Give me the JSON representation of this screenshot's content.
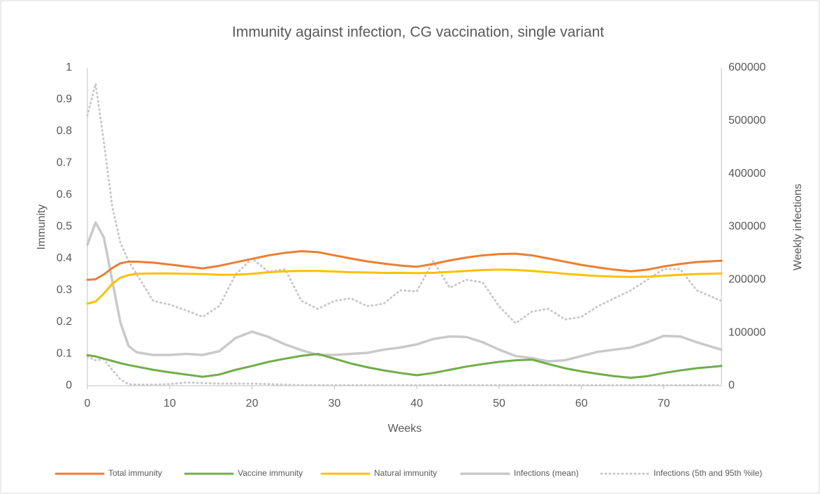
{
  "chart_data": {
    "type": "line",
    "title": "Immunity against infection, CG vaccination, single variant",
    "x_label": "Weeks",
    "y_label": "Immunity",
    "y2_label": "Weekly infections",
    "x": [
      0,
      1,
      2,
      3,
      4,
      5,
      6,
      8,
      10,
      12,
      14,
      16,
      18,
      20,
      22,
      24,
      26,
      28,
      30,
      32,
      34,
      36,
      38,
      40,
      42,
      44,
      46,
      48,
      50,
      52,
      54,
      56,
      58,
      60,
      62,
      64,
      66,
      68,
      70,
      72,
      74,
      77
    ],
    "xlim": [
      0,
      77
    ],
    "xticks": [
      0,
      10,
      20,
      30,
      40,
      50,
      60,
      70
    ],
    "ylim": [
      0,
      1
    ],
    "yticks": [
      0,
      0.1,
      0.2,
      0.3,
      0.4,
      0.5,
      0.6,
      0.7,
      0.8,
      0.9,
      1
    ],
    "y2lim": [
      0,
      600000
    ],
    "y2ticks": [
      0,
      100000,
      200000,
      300000,
      400000,
      500000,
      600000
    ],
    "series": [
      {
        "name": "Total immunity",
        "color": "#ed7d31",
        "width": 3,
        "values": [
          0.333,
          0.335,
          0.35,
          0.37,
          0.385,
          0.39,
          0.39,
          0.387,
          0.381,
          0.375,
          0.369,
          0.377,
          0.388,
          0.399,
          0.41,
          0.418,
          0.423,
          0.42,
          0.41,
          0.4,
          0.391,
          0.384,
          0.378,
          0.374,
          0.383,
          0.394,
          0.403,
          0.41,
          0.414,
          0.415,
          0.41,
          0.4,
          0.39,
          0.38,
          0.372,
          0.365,
          0.36,
          0.365,
          0.375,
          0.383,
          0.389,
          0.393
        ]
      },
      {
        "name": "Vaccine immunity",
        "color": "#70ad47",
        "width": 3,
        "values": [
          0.096,
          0.092,
          0.085,
          0.078,
          0.071,
          0.065,
          0.06,
          0.05,
          0.042,
          0.035,
          0.028,
          0.035,
          0.05,
          0.062,
          0.075,
          0.085,
          0.094,
          0.1,
          0.085,
          0.07,
          0.058,
          0.048,
          0.04,
          0.033,
          0.04,
          0.05,
          0.06,
          0.068,
          0.075,
          0.08,
          0.082,
          0.068,
          0.055,
          0.045,
          0.037,
          0.03,
          0.025,
          0.03,
          0.04,
          0.048,
          0.055,
          0.062
        ]
      },
      {
        "name": "Natural immunity",
        "color": "#ffc000",
        "width": 3,
        "values": [
          0.258,
          0.265,
          0.29,
          0.32,
          0.34,
          0.348,
          0.352,
          0.353,
          0.353,
          0.352,
          0.351,
          0.349,
          0.349,
          0.352,
          0.357,
          0.36,
          0.361,
          0.361,
          0.359,
          0.357,
          0.356,
          0.355,
          0.355,
          0.354,
          0.355,
          0.358,
          0.361,
          0.364,
          0.365,
          0.364,
          0.361,
          0.357,
          0.352,
          0.348,
          0.345,
          0.343,
          0.342,
          0.343,
          0.346,
          0.349,
          0.351,
          0.353
        ]
      },
      {
        "name": "Infections (mean)",
        "color": "#c9c9c9",
        "width": 3.5,
        "axis": "y2",
        "values": [
          266000,
          308000,
          280000,
          200000,
          120000,
          75000,
          63000,
          58000,
          58000,
          60000,
          58000,
          65000,
          90000,
          102000,
          92000,
          78000,
          67000,
          58000,
          58000,
          60000,
          62000,
          68000,
          72000,
          78000,
          88000,
          93000,
          92000,
          82000,
          68000,
          56000,
          52000,
          46000,
          48000,
          56000,
          64000,
          68000,
          72000,
          82000,
          94000,
          93000,
          82000,
          68000
        ]
      },
      {
        "name": "Infections (5th and 95th %ile)",
        "color": "#c9c9c9",
        "width": 3,
        "dash": true,
        "axis": "y2",
        "values": [
          510000,
          570000,
          460000,
          340000,
          270000,
          235000,
          210000,
          160000,
          153000,
          142000,
          130000,
          150000,
          210000,
          240000,
          215000,
          220000,
          160000,
          145000,
          160000,
          165000,
          150000,
          155000,
          180000,
          178000,
          235000,
          185000,
          200000,
          195000,
          150000,
          118000,
          140000,
          145000,
          125000,
          130000,
          150000,
          165000,
          180000,
          200000,
          220000,
          220000,
          180000,
          160000
        ]
      },
      {
        "color": "#c9c9c9",
        "width": 3,
        "dash": true,
        "axis": "y2",
        "values": [
          55000,
          48000,
          50000,
          30000,
          12000,
          3000,
          2000,
          2000,
          3000,
          6000,
          5000,
          4000,
          4000,
          4000,
          3000,
          2000,
          1000,
          1000,
          1000,
          1000,
          1000,
          1000,
          1000,
          1000,
          1000,
          1000,
          1000,
          1000,
          1000,
          1000,
          1000,
          1000,
          1000,
          1000,
          1000,
          1000,
          1000,
          1000,
          1000,
          1000,
          1000,
          1000
        ]
      }
    ]
  }
}
